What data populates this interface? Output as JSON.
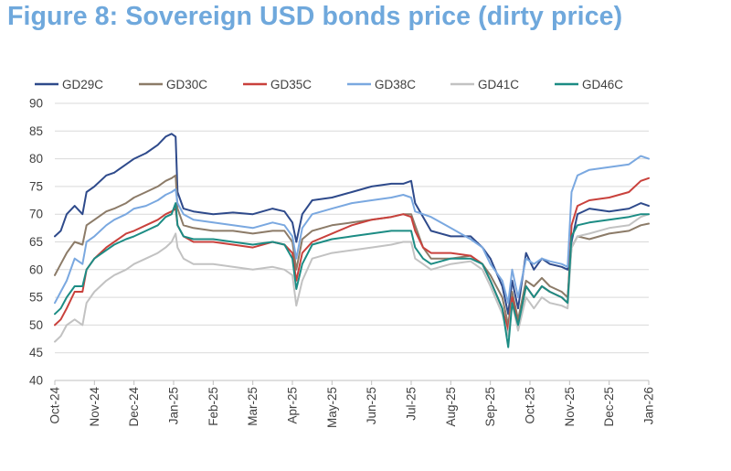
{
  "title": "Figure 8: Sovereign USD bonds price (dirty price)",
  "chart_data": {
    "type": "line",
    "title": "Figure 8: Sovereign USD bonds price (dirty price)",
    "xlabel": "",
    "ylabel": "",
    "ylim": [
      40,
      90
    ],
    "yticks": [
      40,
      45,
      50,
      55,
      60,
      65,
      70,
      75,
      80,
      85,
      90
    ],
    "grid": true,
    "legend_position": "top",
    "x_range": [
      0,
      15
    ],
    "x_ticks": [
      {
        "label": "Oct-24",
        "t": 0
      },
      {
        "label": "Nov-24",
        "t": 1
      },
      {
        "label": "Dec-24",
        "t": 2
      },
      {
        "label": "Jan-25",
        "t": 3
      },
      {
        "label": "Feb-25",
        "t": 4
      },
      {
        "label": "Mar-25",
        "t": 5
      },
      {
        "label": "Apr-25",
        "t": 6
      },
      {
        "label": "May-25",
        "t": 7
      },
      {
        "label": "Jun-25",
        "t": 8
      },
      {
        "label": "Jul-25",
        "t": 9
      },
      {
        "label": "Aug-25",
        "t": 10
      },
      {
        "label": "Sep-25",
        "t": 11
      },
      {
        "label": "Oct-25",
        "t": 12
      },
      {
        "label": "Nov-25",
        "t": 13
      },
      {
        "label": "Dec-25",
        "t": 14
      },
      {
        "label": "Jan-26",
        "t": 15
      }
    ],
    "x_note": "x values are months elapsed since Oct-24 (0 = Oct-24, 15 = Jan-26)",
    "series": [
      {
        "name": "GD29C",
        "color": "#2e4a8b",
        "x": [
          0,
          0.15,
          0.3,
          0.5,
          0.7,
          0.8,
          1,
          1.3,
          1.5,
          1.8,
          2,
          2.3,
          2.6,
          2.8,
          2.95,
          3.05,
          3.1,
          3.25,
          3.5,
          4,
          4.5,
          5,
          5.5,
          5.8,
          6,
          6.1,
          6.25,
          6.5,
          7,
          7.5,
          8,
          8.5,
          8.8,
          9,
          9.1,
          9.3,
          9.5,
          10,
          10.5,
          10.8,
          11,
          11.3,
          11.45,
          11.55,
          11.7,
          11.9,
          12.1,
          12.3,
          12.5,
          12.8,
          12.95,
          13.05,
          13.2,
          13.5,
          14,
          14.5,
          14.8,
          15
        ],
        "y": [
          66,
          67,
          70,
          71.5,
          70,
          74,
          75,
          77,
          77.5,
          79,
          80,
          81,
          82.5,
          84,
          84.5,
          84,
          74,
          71,
          70.5,
          70,
          70.3,
          70,
          71,
          70.5,
          68.5,
          65,
          70,
          72.5,
          73,
          74,
          75,
          75.5,
          75.5,
          76,
          72,
          69.5,
          67,
          66,
          66,
          64,
          62,
          57,
          52,
          58,
          53,
          63,
          60,
          62,
          61,
          60.5,
          60,
          65,
          70,
          71,
          70.5,
          71,
          72,
          71.5
        ]
      },
      {
        "name": "GD30C",
        "color": "#8c7b68",
        "x": [
          0,
          0.15,
          0.3,
          0.5,
          0.7,
          0.8,
          1,
          1.3,
          1.5,
          1.8,
          2,
          2.3,
          2.6,
          2.8,
          2.95,
          3.05,
          3.1,
          3.25,
          3.5,
          4,
          4.5,
          5,
          5.5,
          5.8,
          6,
          6.1,
          6.25,
          6.5,
          7,
          7.5,
          8,
          8.5,
          8.8,
          9,
          9.1,
          9.3,
          9.5,
          10,
          10.5,
          10.8,
          11,
          11.3,
          11.45,
          11.55,
          11.7,
          11.9,
          12.1,
          12.3,
          12.5,
          12.8,
          12.95,
          13.05,
          13.2,
          13.5,
          14,
          14.5,
          14.8,
          15
        ],
        "y": [
          59,
          61,
          63,
          65,
          64.5,
          68,
          69,
          70.5,
          71,
          72,
          73,
          74,
          75,
          76,
          76.5,
          77,
          71,
          68,
          67.5,
          67,
          67,
          66.5,
          67,
          67,
          65,
          60,
          65.5,
          67,
          68,
          68.5,
          69,
          69.5,
          70,
          70,
          68,
          64,
          62,
          62,
          62.5,
          61,
          59,
          55,
          50,
          56,
          51,
          58,
          57,
          58.5,
          57,
          56,
          55,
          64,
          66,
          65.5,
          66.5,
          67,
          68,
          68.3
        ]
      },
      {
        "name": "GD35C",
        "color": "#c9413c",
        "x": [
          0,
          0.15,
          0.3,
          0.5,
          0.7,
          0.8,
          1,
          1.3,
          1.5,
          1.8,
          2,
          2.3,
          2.6,
          2.8,
          2.95,
          3.05,
          3.1,
          3.25,
          3.5,
          4,
          4.5,
          5,
          5.5,
          5.8,
          6,
          6.1,
          6.25,
          6.5,
          7,
          7.5,
          8,
          8.5,
          8.8,
          9,
          9.1,
          9.3,
          9.5,
          10,
          10.5,
          10.8,
          11,
          11.3,
          11.45,
          11.55,
          11.7,
          11.9,
          12.1,
          12.3,
          12.5,
          12.8,
          12.95,
          13.05,
          13.2,
          13.5,
          14,
          14.5,
          14.8,
          15
        ],
        "y": [
          50,
          51,
          53,
          56,
          56,
          60,
          62,
          64,
          65,
          66.5,
          67,
          68,
          69,
          70,
          70.5,
          71,
          68,
          66,
          65,
          65,
          64.5,
          64,
          65,
          64.5,
          63,
          58,
          63,
          65,
          66.5,
          68,
          69,
          69.5,
          70,
          69.5,
          67,
          64,
          63,
          63,
          62.5,
          61,
          58,
          53,
          49,
          55,
          50,
          57,
          55,
          57,
          56,
          55,
          54,
          68,
          71.5,
          72.5,
          73,
          74,
          76,
          76.5
        ]
      },
      {
        "name": "GD38C",
        "color": "#7aa8e0",
        "x": [
          0,
          0.15,
          0.3,
          0.5,
          0.7,
          0.8,
          1,
          1.3,
          1.5,
          1.8,
          2,
          2.3,
          2.6,
          2.8,
          2.95,
          3.05,
          3.1,
          3.25,
          3.5,
          4,
          4.5,
          5,
          5.5,
          5.8,
          6,
          6.1,
          6.25,
          6.5,
          7,
          7.5,
          8,
          8.5,
          8.8,
          9,
          9.1,
          9.3,
          9.5,
          10,
          10.5,
          10.8,
          11,
          11.3,
          11.45,
          11.55,
          11.7,
          11.9,
          12.1,
          12.3,
          12.5,
          12.8,
          12.95,
          13.05,
          13.2,
          13.5,
          14,
          14.5,
          14.8,
          15
        ],
        "y": [
          54,
          56,
          58,
          62,
          61,
          65,
          66,
          68,
          69,
          70,
          71,
          71.5,
          72.5,
          73.5,
          74,
          74.5,
          72,
          70,
          69,
          68.5,
          68,
          67.5,
          68.5,
          68,
          66,
          62,
          67.5,
          70,
          71,
          72,
          72.5,
          73,
          73.5,
          73,
          70.5,
          70,
          69.5,
          67.5,
          65.5,
          64,
          61,
          58,
          54,
          60,
          55,
          62,
          61,
          62,
          61.5,
          61,
          60.5,
          74,
          77,
          78,
          78.5,
          79,
          80.5,
          80
        ]
      },
      {
        "name": "GD41C",
        "color": "#c2c2c2",
        "x": [
          0,
          0.15,
          0.3,
          0.5,
          0.7,
          0.8,
          1,
          1.3,
          1.5,
          1.8,
          2,
          2.3,
          2.6,
          2.8,
          2.95,
          3.05,
          3.1,
          3.25,
          3.5,
          4,
          4.5,
          5,
          5.5,
          5.8,
          6,
          6.1,
          6.25,
          6.5,
          7,
          7.5,
          8,
          8.5,
          8.8,
          9,
          9.1,
          9.3,
          9.5,
          10,
          10.5,
          10.8,
          11,
          11.3,
          11.45,
          11.55,
          11.7,
          11.9,
          12.1,
          12.3,
          12.5,
          12.8,
          12.95,
          13.05,
          13.2,
          13.5,
          14,
          14.5,
          14.8,
          15
        ],
        "y": [
          47,
          48,
          50,
          51,
          50,
          54,
          56,
          58,
          59,
          60,
          61,
          62,
          63,
          64,
          65,
          66.5,
          64,
          62,
          61,
          61,
          60.5,
          60,
          60.5,
          60,
          59,
          53.5,
          58,
          62,
          63,
          63.5,
          64,
          64.5,
          65,
          65,
          62,
          61,
          60,
          61,
          61.5,
          60,
          57,
          52,
          48,
          54,
          49,
          55,
          53,
          55,
          54,
          53.5,
          53,
          64,
          66,
          66.5,
          67.5,
          68,
          69.5,
          70
        ]
      },
      {
        "name": "GD46C",
        "color": "#1c8c84",
        "x": [
          0,
          0.15,
          0.3,
          0.5,
          0.7,
          0.8,
          1,
          1.3,
          1.5,
          1.8,
          2,
          2.3,
          2.6,
          2.8,
          2.95,
          3.05,
          3.1,
          3.25,
          3.5,
          4,
          4.5,
          5,
          5.5,
          5.8,
          6,
          6.1,
          6.25,
          6.5,
          7,
          7.5,
          8,
          8.5,
          8.8,
          9,
          9.1,
          9.3,
          9.5,
          10,
          10.5,
          10.8,
          11,
          11.3,
          11.45,
          11.55,
          11.7,
          11.9,
          12.1,
          12.3,
          12.5,
          12.8,
          12.95,
          13.05,
          13.2,
          13.5,
          14,
          14.5,
          14.8,
          15
        ],
        "y": [
          52,
          53,
          55,
          57,
          57,
          60,
          62,
          63.5,
          64.5,
          65.5,
          66,
          67,
          68,
          69.5,
          70,
          72,
          68,
          66,
          65.5,
          65.5,
          65,
          64.5,
          65,
          64.5,
          62,
          56.5,
          61,
          64.5,
          65.5,
          66,
          66.5,
          67,
          67,
          67,
          64,
          62,
          61,
          62,
          62,
          61,
          58,
          53,
          46,
          54,
          50,
          57,
          55,
          57,
          56,
          55,
          54,
          66,
          68,
          68.5,
          69,
          69.5,
          70,
          70
        ]
      }
    ]
  }
}
